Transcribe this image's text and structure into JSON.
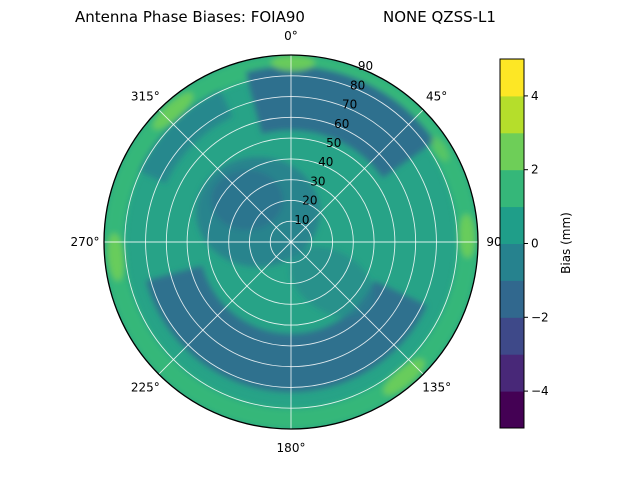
{
  "title": {
    "left": "Antenna Phase Biases: FOIA90",
    "right": "NONE QZSS-L1"
  },
  "chart_data": {
    "type": "heatmap",
    "subtype": "polar_filled_contour",
    "title": "Antenna Phase Biases: FOIA90        NONE QZSS-L1",
    "antenna": "FOIA90",
    "signal": "NONE QZSS-L1",
    "theta_zero": "top",
    "theta_direction": "clockwise",
    "theta_ticks_deg": [
      0,
      45,
      90,
      135,
      180,
      225,
      270,
      315
    ],
    "theta_tick_labels": [
      "0°",
      "45°",
      "90°",
      "135°",
      "180°",
      "225°",
      "270°",
      "315°"
    ],
    "r_ticks": [
      10,
      20,
      30,
      40,
      50,
      60,
      70,
      80,
      90
    ],
    "r_max": 90,
    "r_label_angle_deg": 22.5,
    "grid": true,
    "colorbar": {
      "label": "Bias (mm)",
      "min": -5,
      "max": 5,
      "ticks": [
        4,
        2,
        0,
        -2,
        -4
      ],
      "tick_labels": [
        "4",
        "2",
        "0",
        "−2",
        "−4"
      ],
      "palette_viridis": [
        "#440154",
        "#482878",
        "#3e4989",
        "#31688e",
        "#26828e",
        "#1f9e89",
        "#35b779",
        "#6ece58",
        "#b5de2b",
        "#fde725"
      ]
    },
    "field_regions_approx_mm": [
      {
        "description": "background over most of the hemisphere",
        "bias_mm": 0.5
      },
      {
        "description": "dark ring, zenith 45-75 deg, azimuth 110-260 deg",
        "bias_mm": -1.5
      },
      {
        "description": "dark sector, zenith 55-85 deg, azimuth 345-55 deg",
        "bias_mm": -1.5
      },
      {
        "description": "dark patch near center, azimuth 270-30 deg, zenith below 30 deg",
        "bias_mm": -1.0
      },
      {
        "description": "faint dark streak, zenith 65-80 deg, azimuth 295-335 deg",
        "bias_mm": -1.0
      },
      {
        "description": "green outer rim, zenith 80-90 deg, most azimuths",
        "bias_mm": 1.5
      },
      {
        "description": "bright rim patches near azimuths 0, 90, 140, 265 and 318 deg",
        "bias_mm": 2.5
      }
    ],
    "colors": {
      "base": "#27a387",
      "green_ring": "#35b779",
      "light_patch": "#6ece58",
      "dark_band": "#2e6f8e",
      "mid_dark": "#27818e"
    }
  }
}
